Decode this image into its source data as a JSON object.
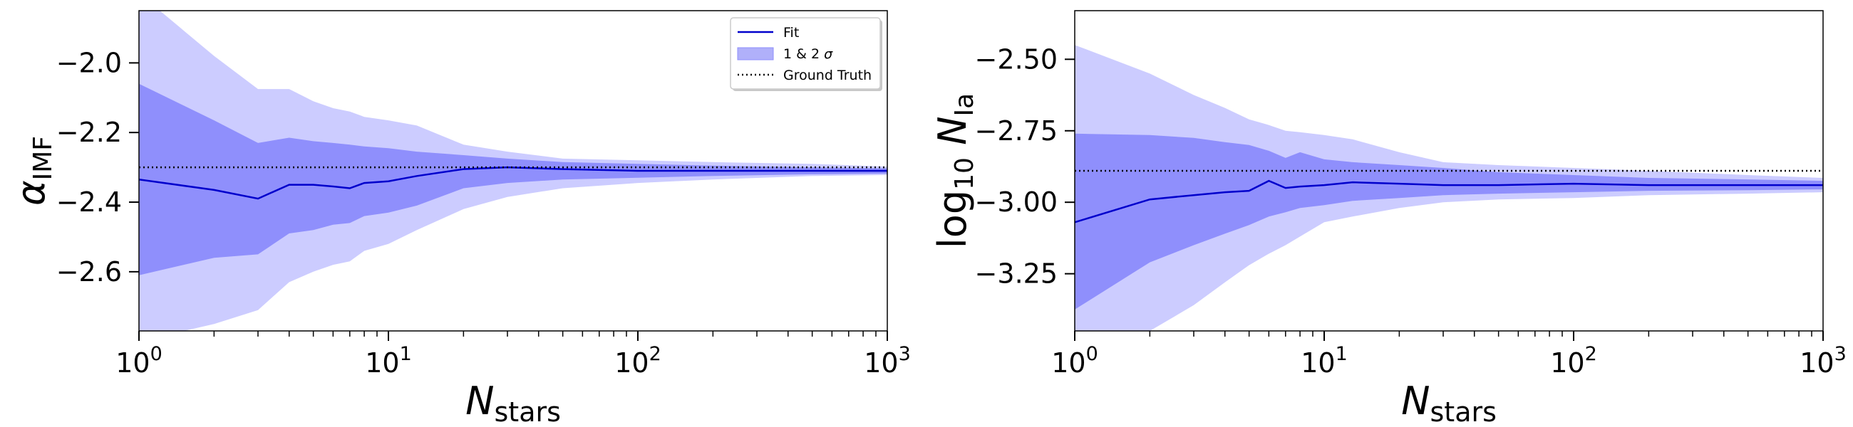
{
  "chart_data": [
    {
      "type": "line",
      "xscale": "log",
      "xlim": [
        1,
        1000
      ],
      "ylim": [
        -2.77,
        -1.85
      ],
      "xlabel": {
        "main": "N",
        "sub": "stars"
      },
      "ylabel": {
        "main": "α",
        "sub": "IMF"
      },
      "x_ticks": [
        {
          "value": 1,
          "base": "10",
          "exp": "0"
        },
        {
          "value": 10,
          "base": "10",
          "exp": "1"
        },
        {
          "value": 100,
          "base": "10",
          "exp": "2"
        },
        {
          "value": 1000,
          "base": "10",
          "exp": "3"
        }
      ],
      "y_ticks": [
        {
          "value": -2.0,
          "label": "−2.0"
        },
        {
          "value": -2.2,
          "label": "−2.2"
        },
        {
          "value": -2.4,
          "label": "−2.4"
        },
        {
          "value": -2.6,
          "label": "−2.6"
        }
      ],
      "ground_truth": -2.3,
      "legend": {
        "placement": "top-right",
        "entries": [
          {
            "key": "fit",
            "label": "Fit"
          },
          {
            "key": "band",
            "label": "1 & 2 σ"
          },
          {
            "key": "truth",
            "label": "Ground Truth"
          }
        ]
      },
      "series": [
        {
          "name": "Fit",
          "x": [
            1,
            2,
            3,
            4,
            5,
            6,
            7,
            8,
            10,
            13,
            20,
            30,
            50,
            100,
            200,
            500,
            1000
          ],
          "y": [
            -2.335,
            -2.365,
            -2.39,
            -2.35,
            -2.35,
            -2.355,
            -2.36,
            -2.345,
            -2.34,
            -2.325,
            -2.305,
            -2.3,
            -2.305,
            -2.31,
            -2.31,
            -2.31,
            -2.31
          ]
        },
        {
          "name": "1 σ",
          "x": [
            1,
            2,
            3,
            4,
            5,
            6,
            7,
            8,
            10,
            13,
            20,
            30,
            50,
            100,
            200,
            500,
            1000
          ],
          "upper": [
            -2.06,
            -2.165,
            -2.23,
            -2.215,
            -2.225,
            -2.23,
            -2.235,
            -2.24,
            -2.245,
            -2.255,
            -2.265,
            -2.275,
            -2.285,
            -2.29,
            -2.295,
            -2.3,
            -2.303
          ],
          "lower": [
            -2.61,
            -2.56,
            -2.55,
            -2.49,
            -2.48,
            -2.465,
            -2.46,
            -2.44,
            -2.43,
            -2.41,
            -2.36,
            -2.345,
            -2.335,
            -2.33,
            -2.325,
            -2.32,
            -2.318
          ]
        },
        {
          "name": "2 σ",
          "x": [
            1,
            2,
            3,
            4,
            5,
            6,
            7,
            8,
            10,
            13,
            20,
            30,
            50,
            100,
            200,
            500,
            1000
          ],
          "upper": [
            -1.8,
            -1.98,
            -2.075,
            -2.075,
            -2.11,
            -2.13,
            -2.14,
            -2.155,
            -2.165,
            -2.18,
            -2.235,
            -2.255,
            -2.275,
            -2.28,
            -2.285,
            -2.29,
            -2.298
          ],
          "lower": [
            -2.8,
            -2.75,
            -2.71,
            -2.63,
            -2.6,
            -2.58,
            -2.57,
            -2.54,
            -2.52,
            -2.48,
            -2.42,
            -2.385,
            -2.36,
            -2.345,
            -2.335,
            -2.325,
            -2.322
          ]
        }
      ]
    },
    {
      "type": "line",
      "xscale": "log",
      "xlim": [
        1,
        1000
      ],
      "ylim": [
        -3.45,
        -2.33
      ],
      "xlabel": {
        "main": "N",
        "sub": "stars"
      },
      "ylabel": {
        "prefix": "log",
        "prefix_sub": "10",
        "main": "N",
        "sub": "Ia"
      },
      "x_ticks": [
        {
          "value": 1,
          "base": "10",
          "exp": "0"
        },
        {
          "value": 10,
          "base": "10",
          "exp": "1"
        },
        {
          "value": 100,
          "base": "10",
          "exp": "2"
        },
        {
          "value": 1000,
          "base": "10",
          "exp": "3"
        }
      ],
      "y_ticks": [
        {
          "value": -2.5,
          "label": "−2.50"
        },
        {
          "value": -2.75,
          "label": "−2.75"
        },
        {
          "value": -3.0,
          "label": "−3.00"
        },
        {
          "value": -3.25,
          "label": "−3.25"
        }
      ],
      "ground_truth": -2.89,
      "series": [
        {
          "name": "Fit",
          "x": [
            1,
            2,
            3,
            4,
            5,
            6,
            7,
            8,
            10,
            13,
            20,
            30,
            50,
            100,
            200,
            500,
            1000
          ],
          "y": [
            -3.07,
            -2.99,
            -2.975,
            -2.965,
            -2.96,
            -2.925,
            -2.95,
            -2.945,
            -2.94,
            -2.93,
            -2.935,
            -2.94,
            -2.94,
            -2.935,
            -2.94,
            -2.94,
            -2.94
          ]
        },
        {
          "name": "1 σ",
          "x": [
            1,
            2,
            3,
            4,
            5,
            6,
            7,
            8,
            10,
            13,
            20,
            30,
            50,
            100,
            200,
            500,
            1000
          ],
          "upper": [
            -2.76,
            -2.765,
            -2.775,
            -2.79,
            -2.8,
            -2.82,
            -2.845,
            -2.825,
            -2.85,
            -2.86,
            -2.87,
            -2.88,
            -2.895,
            -2.905,
            -2.915,
            -2.92,
            -2.925
          ],
          "lower": [
            -3.375,
            -3.21,
            -3.15,
            -3.11,
            -3.08,
            -3.05,
            -3.035,
            -3.02,
            -3.01,
            -2.995,
            -2.985,
            -2.975,
            -2.97,
            -2.965,
            -2.96,
            -2.958,
            -2.955
          ]
        },
        {
          "name": "2 σ",
          "x": [
            1,
            2,
            3,
            4,
            5,
            6,
            7,
            8,
            10,
            13,
            20,
            30,
            50,
            100,
            200,
            500,
            1000
          ],
          "upper": [
            -2.45,
            -2.55,
            -2.625,
            -2.67,
            -2.71,
            -2.73,
            -2.75,
            -2.755,
            -2.765,
            -2.78,
            -2.825,
            -2.86,
            -2.87,
            -2.88,
            -2.89,
            -2.905,
            -2.915
          ],
          "lower": [
            -3.6,
            -3.45,
            -3.36,
            -3.28,
            -3.22,
            -3.18,
            -3.15,
            -3.12,
            -3.07,
            -3.05,
            -3.02,
            -3.0,
            -2.99,
            -2.985,
            -2.975,
            -2.97,
            -2.965
          ]
        }
      ]
    }
  ],
  "colors": {
    "line": "#0000cc",
    "band_1sigma": "#8f8ffc",
    "band_2sigma": "#ccccff",
    "truth": "#000000",
    "frame": "#000000"
  }
}
